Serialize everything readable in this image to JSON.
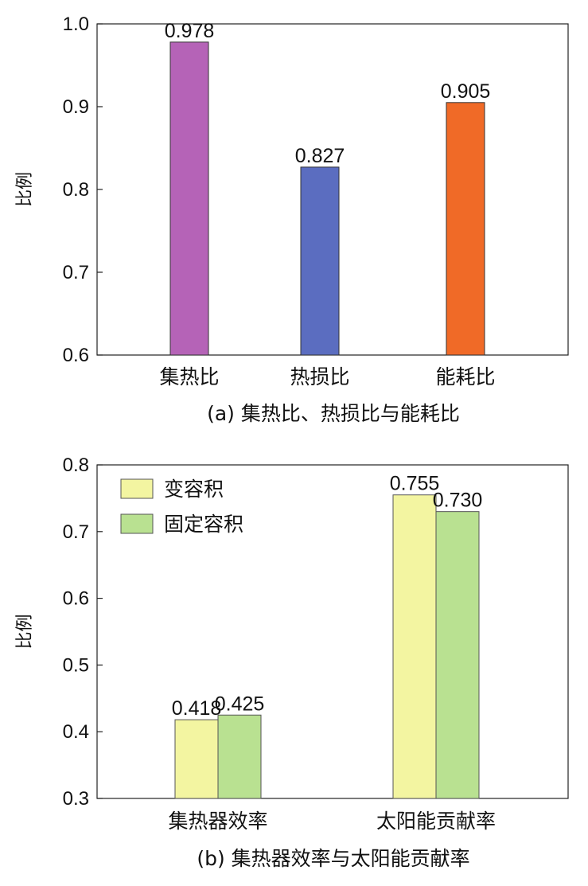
{
  "chart_data": [
    {
      "type": "bar",
      "caption": "(a) 集热比、热损比与能耗比",
      "ylabel": "比例",
      "ylim": [
        0.6,
        1.0
      ],
      "yticks": [
        0.6,
        0.7,
        0.8,
        0.9,
        1.0
      ],
      "categories": [
        "集热比",
        "热损比",
        "能耗比"
      ],
      "values": [
        0.978,
        0.827,
        0.905
      ],
      "value_labels": [
        "0.978",
        "0.827",
        "0.905"
      ],
      "colors": [
        "#b563b7",
        "#5b6dc0",
        "#f06a27"
      ],
      "grid": false
    },
    {
      "type": "bar",
      "caption": "(b) 集热器效率与太阳能贡献率",
      "ylabel": "比例",
      "ylim": [
        0.3,
        0.8
      ],
      "yticks": [
        0.3,
        0.4,
        0.5,
        0.6,
        0.7,
        0.8
      ],
      "categories": [
        "集热器效率",
        "太阳能贡献率"
      ],
      "legend_position": "top-left",
      "grid": false,
      "series": [
        {
          "name": "变容积",
          "values": [
            0.418,
            0.755
          ],
          "value_labels": [
            "0.418",
            "0.755"
          ],
          "color": "#f3f5a1"
        },
        {
          "name": "固定容积",
          "values": [
            0.425,
            0.73
          ],
          "value_labels": [
            "0.425",
            "0.730"
          ],
          "color": "#b9e191"
        }
      ]
    }
  ]
}
